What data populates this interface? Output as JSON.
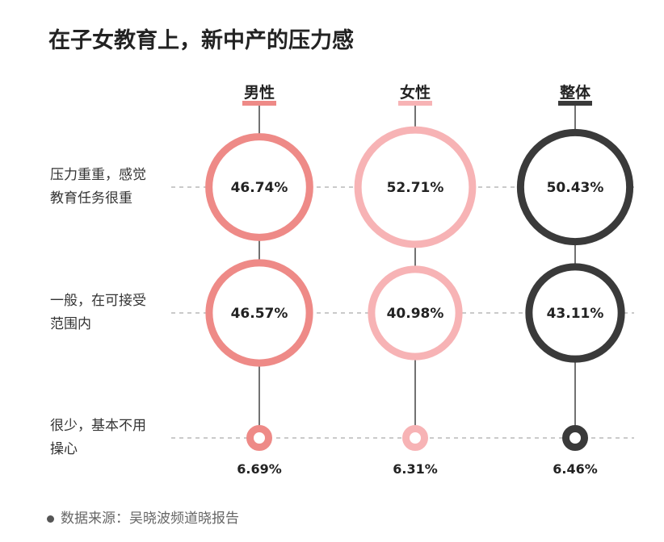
{
  "chart_data": {
    "type": "bubble",
    "title": "在子女教育上，新中产的压力感",
    "columns": [
      {
        "name": "男性",
        "color": "#ee8a87",
        "values": [
          46.74,
          46.57,
          6.69
        ],
        "labels": [
          "46.74%",
          "46.57%",
          "6.69%"
        ]
      },
      {
        "name": "女性",
        "color": "#f7b3b5",
        "values": [
          52.71,
          40.98,
          6.31
        ],
        "labels": [
          "52.71%",
          "40.98%",
          "6.31%"
        ]
      },
      {
        "name": "整体",
        "color": "#3a3a3a",
        "values": [
          50.43,
          43.11,
          6.46
        ],
        "labels": [
          "50.43%",
          "43.11%",
          "6.46%"
        ]
      }
    ],
    "rows": [
      "压力重重，感觉\n教育任务很重",
      "一般，在可接受\n范围内",
      "很少，基本不用\n操心"
    ],
    "units": "%"
  },
  "source": "数据来源：吴晓波频道晓报告"
}
